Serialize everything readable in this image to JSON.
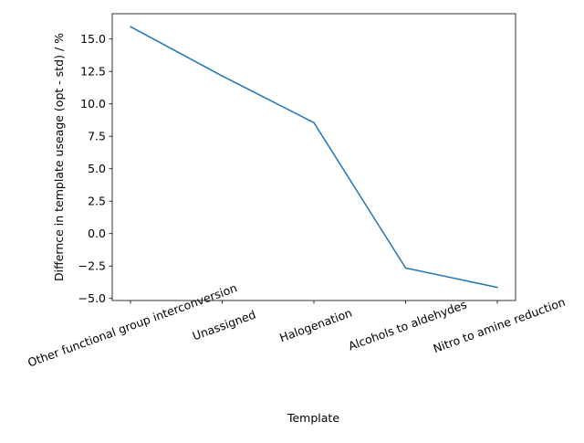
{
  "chart_data": {
    "type": "line",
    "xlabel": "Template",
    "ylabel": "Differnce in template useage (opt - std) / %",
    "categories": [
      "Other functional group interconversion",
      "Unassigned",
      "Halogenation",
      "Alcohols to aldehydes",
      "Nitro to amine reduction"
    ],
    "series": [
      {
        "values": [
          15.95,
          12.15,
          8.55,
          -2.65,
          -4.15
        ],
        "color": "#1f77b4"
      }
    ],
    "ylim": [
      -5.16,
      16.95
    ],
    "yticks": [
      -5.0,
      -2.5,
      0.0,
      2.5,
      5.0,
      7.5,
      10.0,
      12.5,
      15.0
    ],
    "ytick_labels": [
      "−5.0",
      "−2.5",
      "0.0",
      "2.5",
      "5.0",
      "7.5",
      "10.0",
      "12.5",
      "15.0"
    ],
    "xtick_rotation_deg": 20,
    "grid": false,
    "legend": "none"
  }
}
